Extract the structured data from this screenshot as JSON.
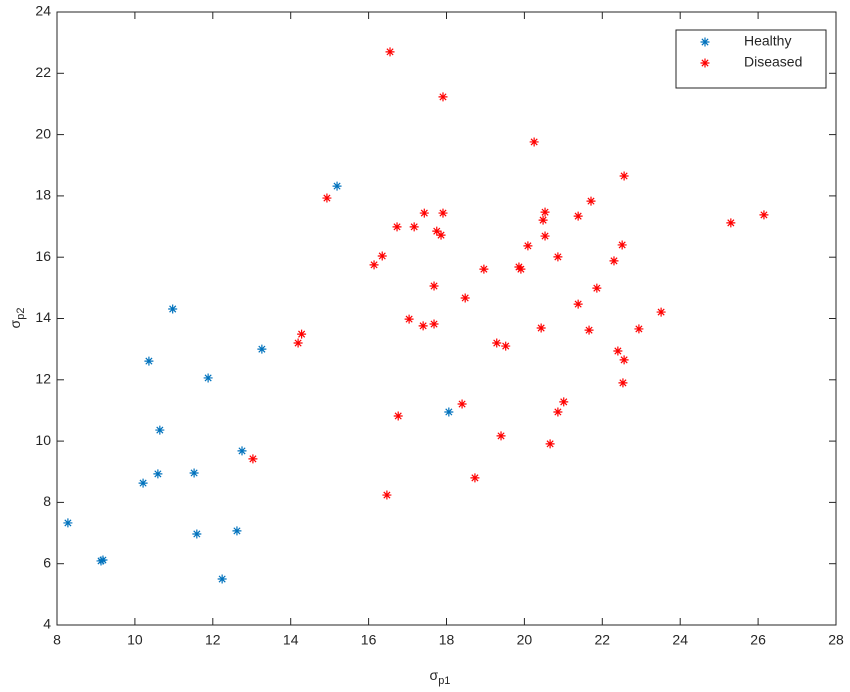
{
  "chart_data": {
    "type": "scatter",
    "xlabel": {
      "symbol": "σ",
      "subscript": "p1"
    },
    "ylabel": {
      "symbol": "σ",
      "subscript": "p2"
    },
    "xlim": [
      8,
      28
    ],
    "xticks": [
      8,
      10,
      12,
      14,
      16,
      18,
      20,
      22,
      24,
      26,
      28
    ],
    "ylim": [
      4,
      24
    ],
    "yticks": [
      4,
      6,
      8,
      10,
      12,
      14,
      16,
      18,
      20,
      22,
      24
    ],
    "legend": "top-right",
    "marker": "asterisk",
    "series": [
      {
        "name": "Healthy",
        "color": "#0072bd",
        "x": [
          8.28,
          9.13,
          9.18,
          10.21,
          10.36,
          10.59,
          10.64,
          10.97,
          11.52,
          11.59,
          11.88,
          12.24,
          12.62,
          12.75,
          13.26,
          15.19,
          18.06
        ],
        "values": [
          7.33,
          6.09,
          6.12,
          8.63,
          12.61,
          8.93,
          10.36,
          14.31,
          8.96,
          6.97,
          12.06,
          5.5,
          7.07,
          9.68,
          13.0,
          18.32,
          10.95
        ]
      },
      {
        "name": "Diseased",
        "color": "#ff0000",
        "x": [
          16.55,
          17.91,
          20.25,
          22.56,
          14.93,
          21.71,
          17.43,
          17.91,
          20.53,
          20.48,
          21.38,
          25.3,
          26.15,
          16.73,
          17.17,
          17.75,
          17.86,
          20.53,
          20.09,
          22.51,
          16.35,
          16.14,
          20.86,
          22.3,
          18.96,
          19.86,
          19.91,
          17.68,
          21.86,
          18.48,
          21.38,
          23.51,
          17.04,
          17.4,
          17.68,
          20.43,
          21.66,
          22.94,
          14.28,
          14.19,
          19.29,
          19.52,
          22.4,
          22.56,
          22.53,
          18.4,
          21.01,
          20.86,
          16.76,
          19.4,
          20.66,
          13.03,
          18.73,
          16.47
        ],
        "values": [
          22.7,
          21.23,
          19.76,
          18.65,
          17.93,
          17.83,
          17.44,
          17.44,
          17.47,
          17.21,
          17.34,
          17.12,
          17.38,
          16.99,
          16.99,
          16.85,
          16.72,
          16.69,
          16.37,
          16.4,
          16.04,
          15.75,
          16.01,
          15.88,
          15.61,
          15.68,
          15.61,
          15.06,
          14.99,
          14.67,
          14.47,
          14.21,
          13.98,
          13.76,
          13.82,
          13.69,
          13.62,
          13.66,
          13.49,
          13.2,
          13.2,
          13.1,
          12.94,
          12.65,
          11.9,
          11.21,
          11.28,
          10.95,
          10.82,
          10.17,
          9.91,
          9.42,
          8.8,
          8.24
        ]
      }
    ]
  }
}
